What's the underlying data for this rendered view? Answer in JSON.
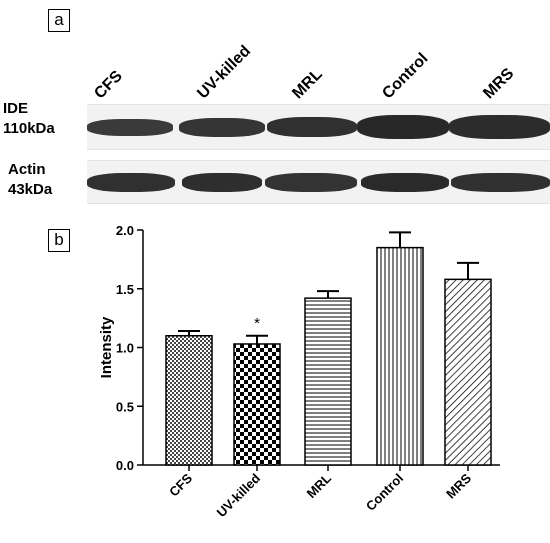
{
  "panel_a": {
    "label": "a",
    "lanes": [
      "CFS",
      "UV-killed",
      "MRL",
      "Control",
      "MRS"
    ],
    "rows": [
      {
        "name": "IDE",
        "weight": "110kDa"
      },
      {
        "name": "Actin",
        "weight": "43kDa"
      }
    ]
  },
  "panel_b": {
    "label": "b",
    "significance_marker": "*"
  },
  "chart_data": {
    "type": "bar",
    "categories": [
      "CFS",
      "UV-killed",
      "MRL",
      "Control",
      "MRS"
    ],
    "values": [
      1.1,
      1.03,
      1.42,
      1.85,
      1.58
    ],
    "errors": [
      0.04,
      0.07,
      0.06,
      0.13,
      0.14
    ],
    "significant": [
      false,
      true,
      false,
      false,
      false
    ],
    "ylabel": "Intensity",
    "xlabel": "",
    "ylim": [
      0,
      2.0
    ],
    "yticks": [
      "0.0",
      "0.5",
      "1.0",
      "1.5",
      "2.0"
    ],
    "patterns": [
      "fine-crosshatch",
      "checkerboard",
      "horizontal-lines",
      "vertical-lines",
      "diagonal-lines"
    ]
  }
}
